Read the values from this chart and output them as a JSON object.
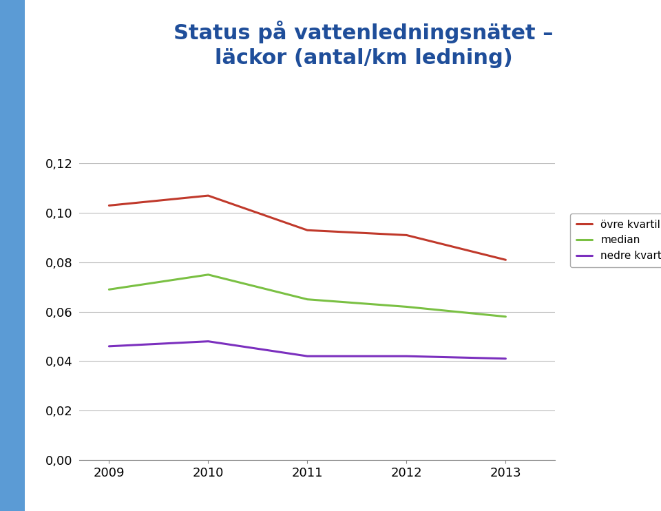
{
  "title_line1": "Status på vattenledningsnätet –",
  "title_line2": "läckor (antal/km ledning)",
  "title_color": "#1F4E9A",
  "years": [
    2009,
    2010,
    2011,
    2012,
    2013
  ],
  "ovre_kvartil": [
    0.103,
    0.107,
    0.093,
    0.091,
    0.081
  ],
  "median": [
    0.069,
    0.075,
    0.065,
    0.062,
    0.058
  ],
  "nedre_kvartil": [
    0.046,
    0.048,
    0.042,
    0.042,
    0.041
  ],
  "ovre_color": "#C0392B",
  "median_color": "#7AC043",
  "nedre_color": "#7B2FBE",
  "ylim_min": 0.0,
  "ylim_max": 0.12,
  "yticks": [
    0.0,
    0.02,
    0.04,
    0.06,
    0.08,
    0.1,
    0.12
  ],
  "background_color": "#FFFFFF",
  "grid_color": "#BBBBBB",
  "legend_labels": [
    "övre kvartil",
    "median",
    "nedre kvartil"
  ],
  "linewidth": 2.2,
  "left_bar_color": "#5B9BD5",
  "left_bar_width": 0.038
}
